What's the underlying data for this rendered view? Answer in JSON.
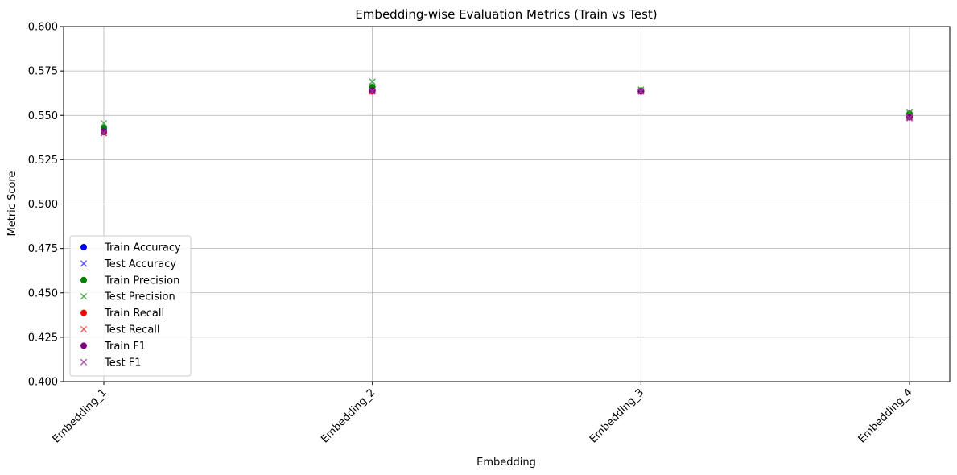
{
  "chart_data": {
    "type": "scatter",
    "title": "Embedding-wise Evaluation Metrics (Train vs Test)",
    "xlabel": "Embedding",
    "ylabel": "Metric Score",
    "categories": [
      "Embedding_1",
      "Embedding_2",
      "Embedding_3",
      "Embedding_4"
    ],
    "ylim": [
      0.4,
      0.6
    ],
    "yticks": [
      "0.400",
      "0.425",
      "0.450",
      "0.475",
      "0.500",
      "0.525",
      "0.550",
      "0.575",
      "0.600"
    ],
    "grid": true,
    "legend_position": "lower-left",
    "xtick_rotation": 45,
    "series": [
      {
        "name": "Train Accuracy",
        "marker": "circle",
        "color": "#0000ff",
        "values": [
          0.5415,
          0.564,
          0.5635,
          0.5495
        ]
      },
      {
        "name": "Test Accuracy",
        "marker": "x",
        "color": "#4040ff",
        "values": [
          0.541,
          0.5645,
          0.5635,
          0.549
        ]
      },
      {
        "name": "Train Precision",
        "marker": "circle",
        "color": "#008000",
        "values": [
          0.543,
          0.566,
          0.564,
          0.551
        ]
      },
      {
        "name": "Test Precision",
        "marker": "x",
        "color": "#40a040",
        "values": [
          0.5455,
          0.569,
          0.5645,
          0.5515
        ]
      },
      {
        "name": "Train Recall",
        "marker": "circle",
        "color": "#ff0000",
        "values": [
          0.5405,
          0.5635,
          0.5635,
          0.549
        ]
      },
      {
        "name": "Test Recall",
        "marker": "x",
        "color": "#ff4040",
        "values": [
          0.54,
          0.5635,
          0.5635,
          0.5485
        ]
      },
      {
        "name": "Train F1",
        "marker": "circle",
        "color": "#800080",
        "values": [
          0.541,
          0.564,
          0.5635,
          0.549
        ]
      },
      {
        "name": "Test F1",
        "marker": "x",
        "color": "#a040a0",
        "values": [
          0.54,
          0.5635,
          0.5635,
          0.5485
        ]
      }
    ]
  }
}
